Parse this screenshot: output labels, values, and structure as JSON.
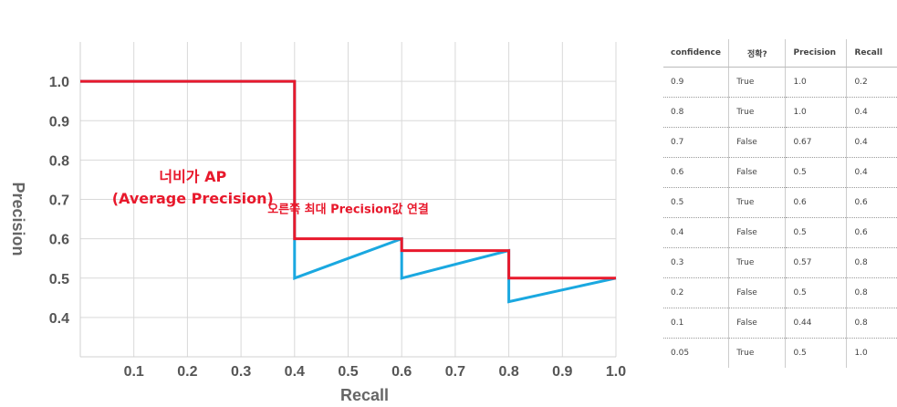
{
  "chart_data": {
    "type": "line",
    "title": "",
    "xlabel": "Recall",
    "ylabel": "Precision",
    "xlim": [
      0,
      1.0
    ],
    "ylim": [
      0.3,
      1.1
    ],
    "x_ticks": [
      "0.1",
      "0.2",
      "0.3",
      "0.4",
      "0.5",
      "0.6",
      "0.7",
      "0.8",
      "0.9",
      "1.0"
    ],
    "y_ticks": [
      "0.4",
      "0.5",
      "0.6",
      "0.7",
      "0.8",
      "0.9",
      "1.0"
    ],
    "grid": true,
    "series": [
      {
        "color": "#1aa8e0",
        "points": [
          [
            0,
            1.0
          ],
          [
            0.2,
            1.0
          ],
          [
            0.4,
            1.0
          ],
          [
            0.4,
            0.67
          ],
          [
            0.4,
            0.5
          ],
          [
            0.6,
            0.6
          ],
          [
            0.6,
            0.5
          ],
          [
            0.8,
            0.57
          ],
          [
            0.8,
            0.44
          ],
          [
            1.0,
            0.5
          ]
        ]
      },
      {
        "color": "#e8192c",
        "points": [
          [
            0,
            1.0
          ],
          [
            0.4,
            1.0
          ],
          [
            0.4,
            0.6
          ],
          [
            0.6,
            0.6
          ],
          [
            0.6,
            0.57
          ],
          [
            0.8,
            0.57
          ],
          [
            0.8,
            0.5
          ],
          [
            1.0,
            0.5
          ]
        ]
      }
    ],
    "annotations": [
      {
        "text": "너비가 AP",
        "x": 0.21,
        "y": 0.745
      },
      {
        "text": "(Average Precision)",
        "x": 0.21,
        "y": 0.69
      },
      {
        "text": "오른쪽 최대 Precision값 연결",
        "x": 0.5,
        "y": 0.665
      }
    ]
  },
  "table": {
    "headers": [
      "confidence",
      "정확?",
      "Precision",
      "Recall"
    ],
    "rows": [
      [
        "0.9",
        "True",
        "1.0",
        "0.2"
      ],
      [
        "0.8",
        "True",
        "1.0",
        "0.4"
      ],
      [
        "0.7",
        "False",
        "0.67",
        "0.4"
      ],
      [
        "0.6",
        "False",
        "0.5",
        "0.4"
      ],
      [
        "0.5",
        "True",
        "0.6",
        "0.6"
      ],
      [
        "0.4",
        "False",
        "0.5",
        "0.6"
      ],
      [
        "0.3",
        "True",
        "0.57",
        "0.8"
      ],
      [
        "0.2",
        "False",
        "0.5",
        "0.8"
      ],
      [
        "0.1",
        "False",
        "0.44",
        "0.8"
      ],
      [
        "0.05",
        "True",
        "0.5",
        "1.0"
      ]
    ]
  }
}
